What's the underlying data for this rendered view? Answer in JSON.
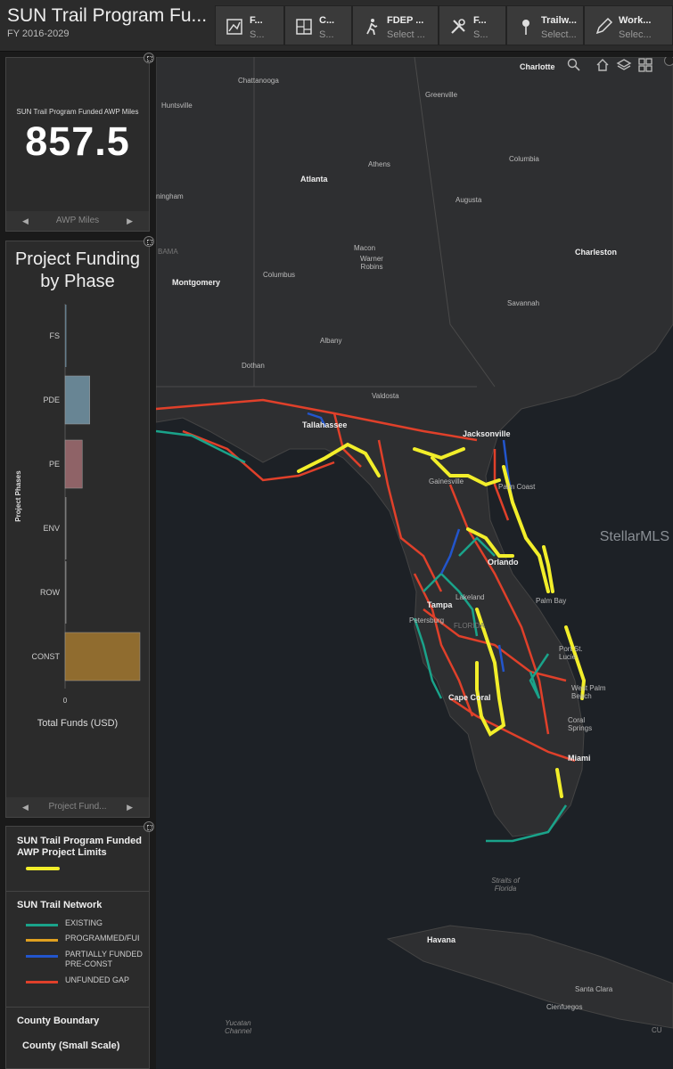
{
  "header": {
    "title": "SUN Trail Program Fu...",
    "subtitle": "FY 2016-2029",
    "buttons": [
      {
        "label": "F...",
        "sub": "S...",
        "icon": "map-icon"
      },
      {
        "label": "C...",
        "sub": "S...",
        "icon": "county-map-icon"
      },
      {
        "label": "FDEP ...",
        "sub": "Select ...",
        "icon": "hiker-icon"
      },
      {
        "label": "F...",
        "sub": "S...",
        "icon": "tools-icon"
      },
      {
        "label": "Trailw...",
        "sub": "Select...",
        "icon": "pin-icon"
      },
      {
        "label": "Work...",
        "sub": "Selec...",
        "icon": "pencil-icon"
      }
    ]
  },
  "kpi": {
    "label": "SUN Trail Program Funded AWP Miles",
    "value": "857.5",
    "pager": "AWP Miles"
  },
  "chart_panel": {
    "pager": "Project Fund..."
  },
  "chart_data": {
    "type": "bar",
    "orientation": "horizontal",
    "title": "Project Funding by Phase",
    "xlabel": "Total Funds (USD)",
    "ylabel": "Project Phases",
    "categories": [
      "FS",
      "PDE",
      "PE",
      "ENV",
      "ROW",
      "CONST"
    ],
    "values": [
      0,
      0.33,
      0.23,
      0,
      0,
      1.0
    ],
    "colors": [
      "#6f8fa0",
      "#6f8fa0",
      "#9a6a6e",
      "#888888",
      "#888888",
      "#9c7430"
    ],
    "x_ticks": [
      "0"
    ]
  },
  "legend": {
    "funded_title": "SUN Trail Program Funded AWP Project Limits",
    "funded_color": "#f2ee2a",
    "network_title": "SUN Trail Network",
    "items": [
      {
        "label": "EXISTING",
        "color": "#1aa38a"
      },
      {
        "label": "PROGRAMMED/FUI",
        "color": "#e0a020"
      },
      {
        "label": "PARTIALLY FUNDED PRE-CONST",
        "color": "#2255cc"
      },
      {
        "label": "UNFUNDED GAP",
        "color": "#e0402a"
      }
    ],
    "county_title": "County Boundary",
    "county_sub": "County (Small Scale)"
  },
  "map": {
    "labels": [
      {
        "text": "Charlotte",
        "big": true
      },
      {
        "text": "Chattanooga"
      },
      {
        "text": "Greenville"
      },
      {
        "text": "Huntsville"
      },
      {
        "text": "Atlanta",
        "big": true
      },
      {
        "text": "Athens"
      },
      {
        "text": "Columbia"
      },
      {
        "text": "ningham"
      },
      {
        "text": "Augusta"
      },
      {
        "text": "BAMA"
      },
      {
        "text": "Macon"
      },
      {
        "text": "Warner Robins"
      },
      {
        "text": "Charleston",
        "big": true
      },
      {
        "text": "Montgomery",
        "big": true
      },
      {
        "text": "Columbus"
      },
      {
        "text": "Savannah"
      },
      {
        "text": "Albany"
      },
      {
        "text": "Dothan"
      },
      {
        "text": "Valdosta"
      },
      {
        "text": "Tallahassee",
        "big": true
      },
      {
        "text": "Jacksonville",
        "big": true
      },
      {
        "text": "Gainesville"
      },
      {
        "text": "Palm Coast"
      },
      {
        "text": "Orlando",
        "big": true
      },
      {
        "text": "Lakeland"
      },
      {
        "text": "Tampa",
        "big": true
      },
      {
        "text": "Petersburg"
      },
      {
        "text": "FLORIDA"
      },
      {
        "text": "Palm Bay"
      },
      {
        "text": "Port St. Lucie"
      },
      {
        "text": "West Palm Beach"
      },
      {
        "text": "Cape Coral",
        "big": true
      },
      {
        "text": "Coral Springs"
      },
      {
        "text": "Miami",
        "big": true
      },
      {
        "text": "Straits of Florida"
      },
      {
        "text": "Havana",
        "big": true
      },
      {
        "text": "Santa Clara"
      },
      {
        "text": "Cienfuegos"
      },
      {
        "text": "Yucatan Channel"
      },
      {
        "text": "CU"
      }
    ],
    "watermark": "StellarMLS",
    "tools": [
      "search-icon",
      "home-icon",
      "layers-icon",
      "basemap-icon"
    ]
  }
}
